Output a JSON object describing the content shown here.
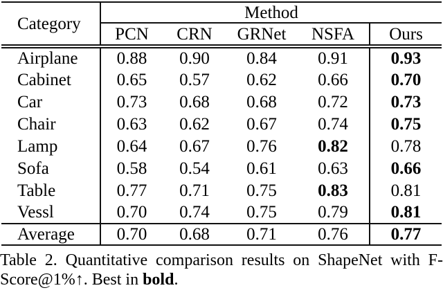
{
  "table": {
    "corner_label": "Category",
    "method_label": "Method",
    "columns": [
      "PCN",
      "CRN",
      "GRNet",
      "NSFA",
      "Ours"
    ],
    "rows": [
      {
        "category": "Airplane",
        "values": [
          "0.88",
          "0.90",
          "0.84",
          "0.91",
          "0.93"
        ],
        "bold_index": 4
      },
      {
        "category": "Cabinet",
        "values": [
          "0.65",
          "0.57",
          "0.62",
          "0.66",
          "0.70"
        ],
        "bold_index": 4
      },
      {
        "category": "Car",
        "values": [
          "0.73",
          "0.68",
          "0.68",
          "0.72",
          "0.73"
        ],
        "bold_index": 4
      },
      {
        "category": "Chair",
        "values": [
          "0.63",
          "0.62",
          "0.67",
          "0.74",
          "0.75"
        ],
        "bold_index": 4
      },
      {
        "category": "Lamp",
        "values": [
          "0.64",
          "0.67",
          "0.76",
          "0.82",
          "0.78"
        ],
        "bold_index": 3
      },
      {
        "category": "Sofa",
        "values": [
          "0.58",
          "0.54",
          "0.61",
          "0.63",
          "0.66"
        ],
        "bold_index": 4
      },
      {
        "category": "Table",
        "values": [
          "0.77",
          "0.71",
          "0.75",
          "0.83",
          "0.81"
        ],
        "bold_index": 3
      },
      {
        "category": "Vessl",
        "values": [
          "0.70",
          "0.74",
          "0.75",
          "0.79",
          "0.81"
        ],
        "bold_index": 4
      }
    ],
    "summary_row": {
      "category": "Average",
      "values": [
        "0.70",
        "0.68",
        "0.71",
        "0.76",
        "0.77"
      ],
      "bold_index": 4
    }
  },
  "caption": {
    "line1": "Table 2. Quantitative comparison results on ShapeNet with F-",
    "line2_prefix": "Score@1%↑. Best in ",
    "bold_word": "bold",
    "line2_suffix": "."
  },
  "colors": {
    "text": "#000000",
    "rule": "#111111",
    "background": "#ffffff"
  }
}
